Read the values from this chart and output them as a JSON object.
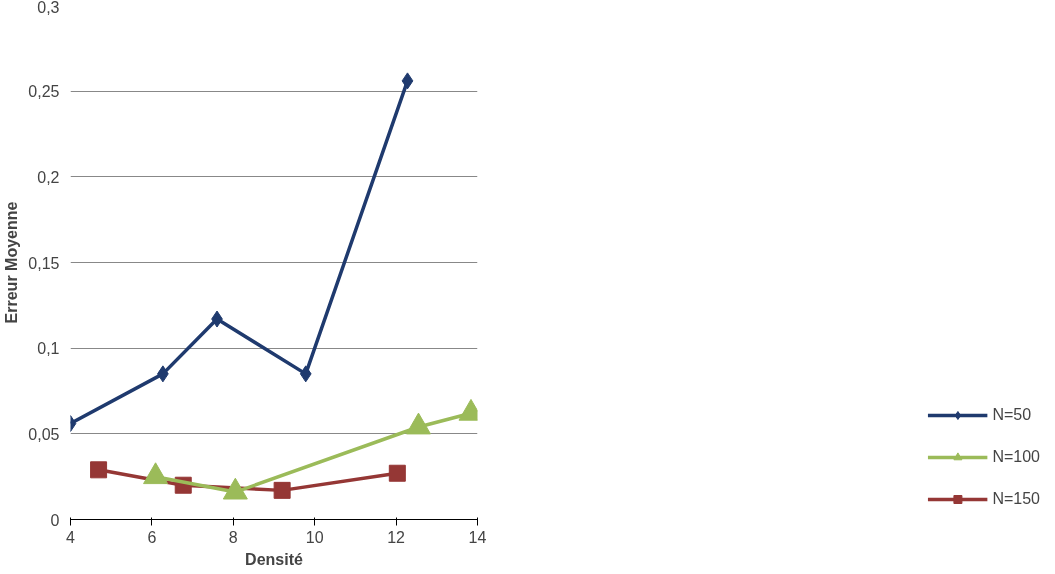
{
  "chart_data": {
    "type": "line",
    "xlabel": "Densité",
    "ylabel": "Erreur Moyenne",
    "xlim": [
      4,
      14
    ],
    "xticks": [
      4,
      6,
      8,
      10,
      12,
      14
    ],
    "ylim": [
      0,
      0.3
    ],
    "yticks": [
      {
        "value": 0,
        "label": "0"
      },
      {
        "value": 0.05,
        "label": "0,05"
      },
      {
        "value": 0.1,
        "label": "0,1"
      },
      {
        "value": 0.15,
        "label": "0,15"
      },
      {
        "value": 0.2,
        "label": "0,2"
      },
      {
        "value": 0.25,
        "label": "0,25"
      },
      {
        "value": 0.3,
        "label": "0,3"
      }
    ],
    "grid": "y",
    "legend": "bottom right",
    "series": [
      {
        "name": "N=50",
        "color": "#1f3a6e",
        "marker": "diamond",
        "x": [
          4,
          6.27,
          7.6,
          9.78,
          12.28
        ],
        "values": [
          0.056,
          0.085,
          0.117,
          0.085,
          0.256
        ]
      },
      {
        "name": "N=100",
        "color": "#9bbb59",
        "marker": "triangle",
        "x": [
          6.09,
          8.05,
          12.55,
          13.84
        ],
        "values": [
          0.025,
          0.016,
          0.054,
          0.062
        ]
      },
      {
        "name": "N=150",
        "color": "#953735",
        "marker": "square",
        "x": [
          4.69,
          6.77,
          9.2,
          12.03
        ],
        "values": [
          0.029,
          0.02,
          0.017,
          0.027
        ]
      }
    ]
  }
}
